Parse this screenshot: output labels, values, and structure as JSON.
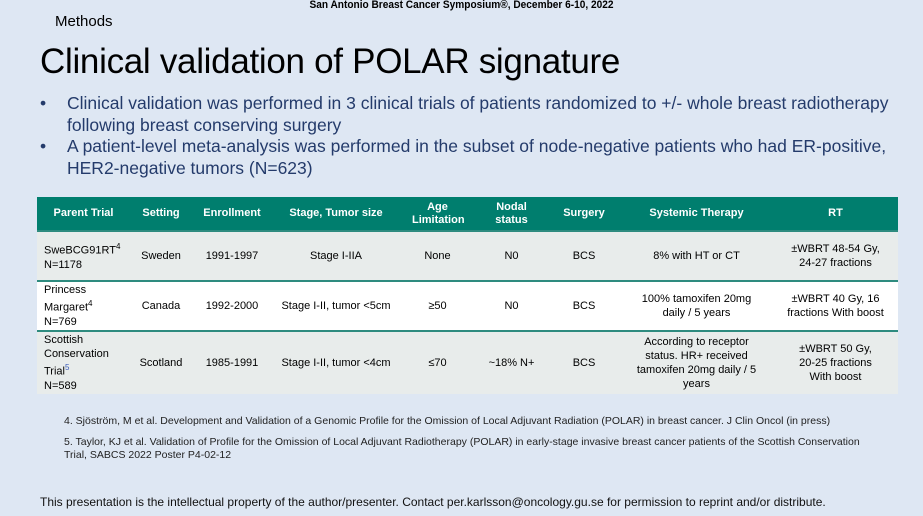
{
  "conference": "San Antonio Breast Cancer Symposium®, December 6-10, 2022",
  "section": "Methods",
  "title": "Clinical validation of POLAR signature",
  "bullets": [
    "Clinical validation was performed in 3 clinical trials of patients randomized to +/- whole breast radiotherapy following breast conserving surgery",
    "A patient-level meta-analysis was performed in the subset of node-negative patients who had ER-positive, HER2-negative tumors (N=623)"
  ],
  "table": {
    "headers": [
      "Parent Trial",
      "Setting",
      "Enrollment",
      "Stage, Tumor size",
      "Age Limitation",
      "Nodal status",
      "Surgery",
      "Systemic Therapy",
      "RT"
    ],
    "rows": [
      {
        "trial": "SweBCG91RT",
        "ref": "4",
        "n": "N=1178",
        "setting": "Sweden",
        "enrollment": "1991-1997",
        "stage": "Stage I-IIA",
        "age": "None",
        "nodal": "N0",
        "surgery": "BCS",
        "systemic": "8% with HT or CT",
        "rt": "±WBRT 48-54 Gy, 24-27 fractions"
      },
      {
        "trial": "Princess Margaret",
        "ref": "4",
        "n": "N=769",
        "setting": "Canada",
        "enrollment": "1992-2000",
        "stage": "Stage I-II, tumor <5cm",
        "age": "≥50",
        "nodal": "N0",
        "surgery": "BCS",
        "systemic": "100% tamoxifen 20mg daily / 5 years",
        "rt": "±WBRT 40 Gy, 16 fractions With boost"
      },
      {
        "trial": "Scottish Conservation Trial",
        "ref": "5",
        "n": "N=589",
        "setting": "Scotland",
        "enrollment": "1985-1991",
        "stage": "Stage I-II, tumor <4cm",
        "age": "≤70",
        "nodal": "~18% N+",
        "surgery": "BCS",
        "systemic": "According to receptor status. HR+ received tamoxifen 20mg daily / 5 years",
        "rt": "±WBRT 50 Gy, 20-25 fractions With boost"
      }
    ]
  },
  "references": [
    "4. Sjöström, M et al. Development and Validation of a Genomic Profile for the Omission of Local Adjuvant Radiation (POLAR) in breast cancer. J Clin Oncol (in press)",
    "5. Taylor, KJ et al. Validation of Profile for the Omission of Local Adjuvant Radiotherapy (POLAR) in early-stage invasive breast cancer patients of the Scottish Conservation Trial, SABCS 2022 Poster P4-02-12"
  ],
  "footer": "This presentation is the intellectual property of the author/presenter.  Contact per.karlsson@oncology.gu.se for permission to reprint and/or distribute.",
  "colors": {
    "background": "#DEE7F3",
    "header": "#007E6E",
    "bullet_text": "#243B6B"
  }
}
